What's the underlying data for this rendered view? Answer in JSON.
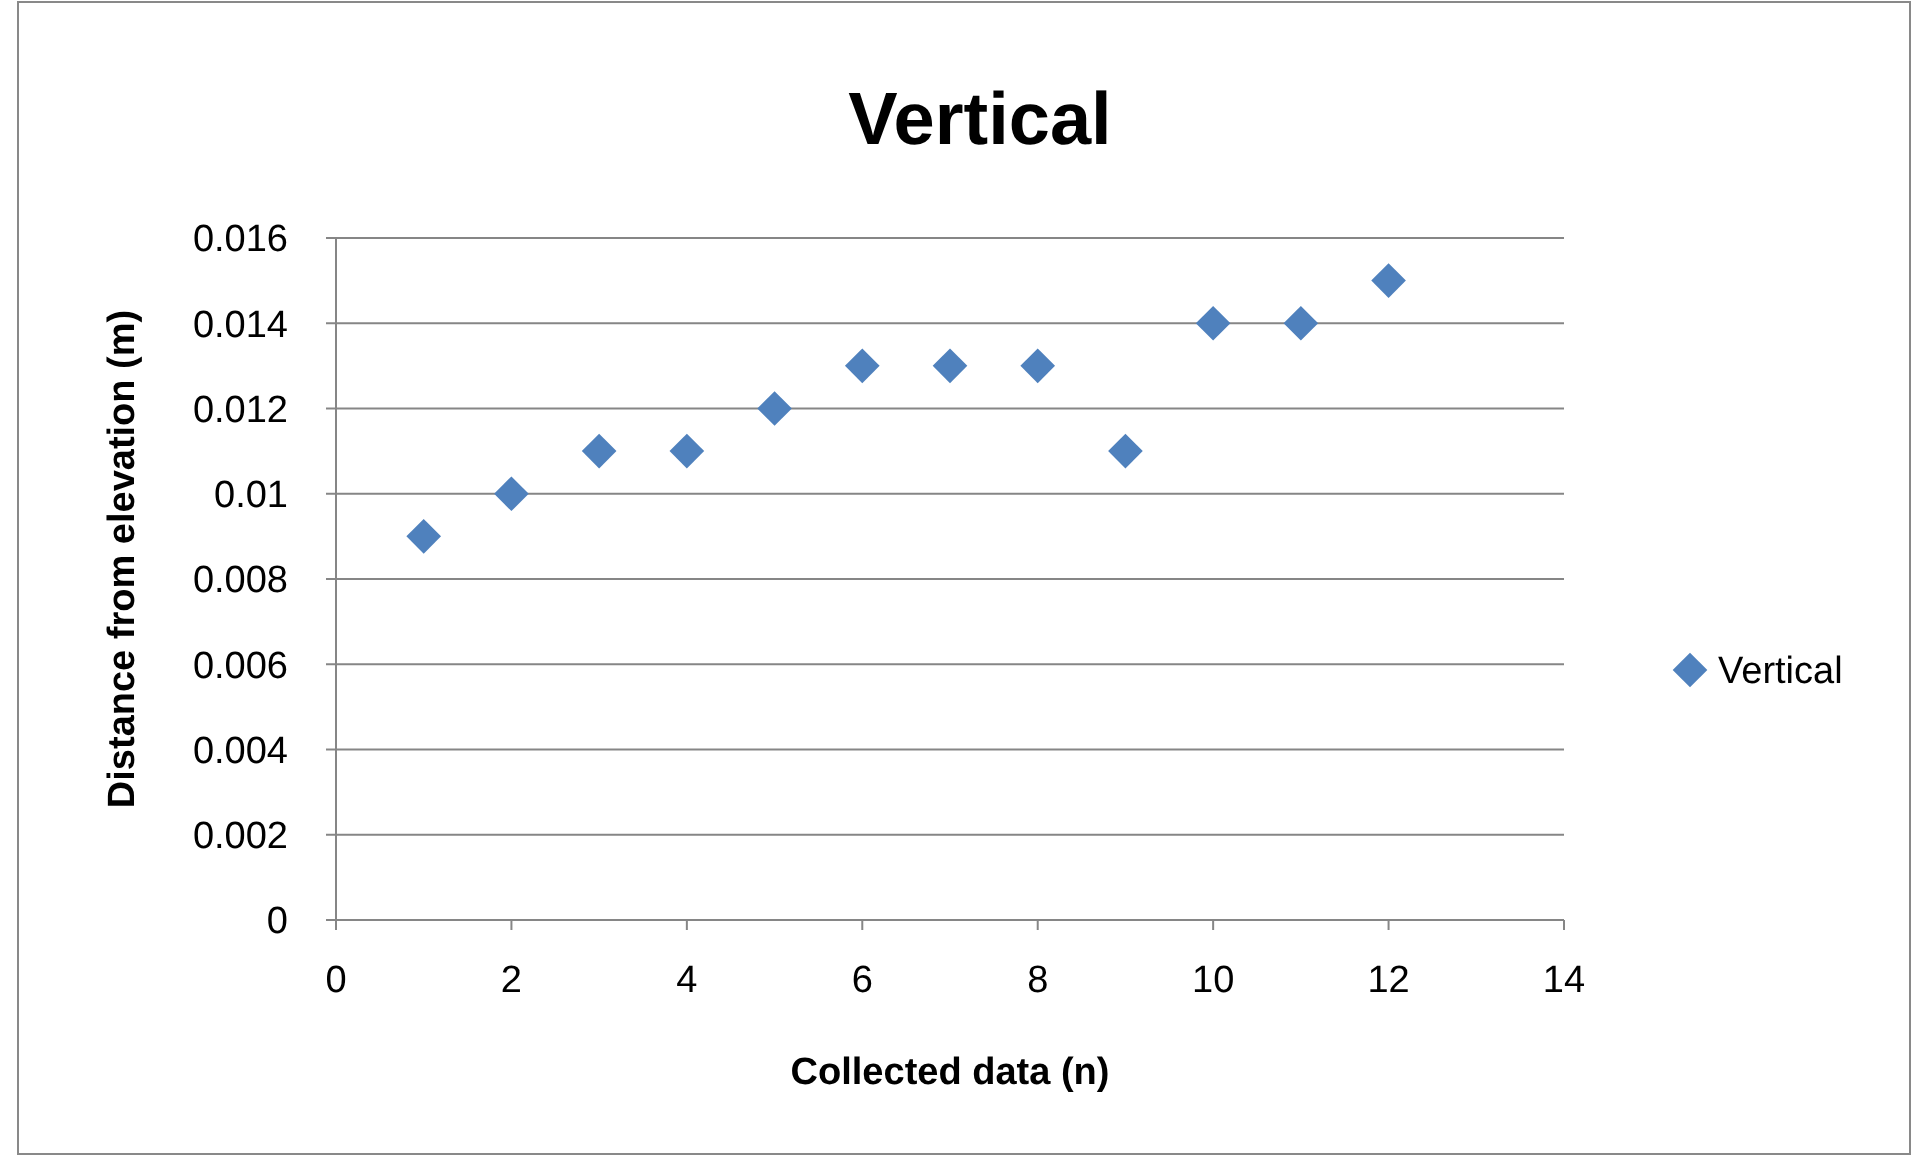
{
  "chart_data": {
    "type": "scatter",
    "title": "Vertical",
    "xlabel": "Collected data (n)",
    "ylabel": "Distance from elevation (m)",
    "x": [
      1,
      2,
      3,
      4,
      5,
      6,
      7,
      8,
      9,
      10,
      11,
      12
    ],
    "series": [
      {
        "name": "Vertical",
        "color": "#4f81bd",
        "values": [
          0.009,
          0.01,
          0.011,
          0.011,
          0.012,
          0.013,
          0.013,
          0.013,
          0.011,
          0.014,
          0.014,
          0.015
        ]
      }
    ],
    "xlim": [
      0,
      14
    ],
    "xticks": [
      0,
      2,
      4,
      6,
      8,
      10,
      12,
      14
    ],
    "ylim": [
      0,
      0.016
    ],
    "yticks": [
      0,
      0.002,
      0.004,
      0.006,
      0.008,
      0.01,
      0.012,
      0.014,
      0.016
    ],
    "grid": "y",
    "legend": "right",
    "marker": "diamond"
  }
}
